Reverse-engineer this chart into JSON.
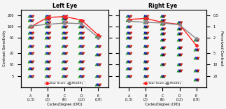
{
  "title_left": "Left Eye",
  "title_right": "Right Eye",
  "xlabel": "Cycles/Degree (CPD)",
  "ylabel_left": "Contrast Sensitivity",
  "ylabel_right": "Perceived Contrast",
  "x_labels": [
    "A\n(1.5)",
    "B\n(3)",
    "C\n(6)",
    "D\n(12)",
    "E\n(18)"
  ],
  "x_positions": [
    0,
    1,
    2,
    3,
    4
  ],
  "your_score_left": [
    100,
    175,
    185,
    150,
    60
  ],
  "healthy_left": [
    105,
    115,
    125,
    120,
    52
  ],
  "your_score_right": [
    155,
    165,
    130,
    115,
    32
  ],
  "healthy_right": [
    140,
    130,
    125,
    112,
    48
  ],
  "dot_levels_left": {
    "0": [
      190,
      150,
      100,
      70,
      50,
      30,
      20,
      12,
      8,
      5
    ],
    "1": [
      190,
      160,
      130,
      100,
      70,
      50,
      30,
      20,
      12,
      8,
      5
    ],
    "2": [
      190,
      160,
      130,
      100,
      70,
      50,
      30,
      20,
      12,
      8,
      5
    ],
    "3": [
      140,
      100,
      70,
      50,
      30,
      20,
      12,
      8,
      5
    ],
    "4": [
      55,
      30,
      18,
      10,
      5,
      3
    ]
  },
  "dot_levels_right": {
    "0": [
      190,
      150,
      100,
      70,
      50,
      30,
      20,
      12,
      8,
      5
    ],
    "1": [
      190,
      160,
      130,
      100,
      70,
      50,
      30,
      20,
      12,
      8,
      5
    ],
    "2": [
      190,
      150,
      120,
      90,
      65,
      45,
      28,
      18,
      10,
      5
    ],
    "3": [
      130,
      90,
      65,
      45,
      28,
      18,
      10,
      7
    ],
    "4": [
      45,
      25,
      15,
      7,
      4
    ]
  },
  "dot_colors_cycle": [
    "#008800",
    "#0000cc",
    "#111111",
    "#cc0000"
  ],
  "dot_offsets": [
    -0.12,
    -0.04,
    0.04,
    0.12
  ],
  "your_score_color": "#ff2222",
  "healthy_color": "#888888",
  "bg_color": "#f5f5f5",
  "ylim_log": [
    2.5,
    280
  ],
  "left_yticks": [
    5,
    10,
    20,
    50,
    100,
    200
  ],
  "right_ytick_vals": [
    200,
    100,
    50,
    20,
    10,
    5
  ],
  "right_ytick_labels": [
    "0.5",
    "1",
    "2",
    "5",
    "10",
    "20"
  ],
  "legend_your_score": "Your Score",
  "legend_healthy": "Healthy",
  "marker_size": 2.8
}
